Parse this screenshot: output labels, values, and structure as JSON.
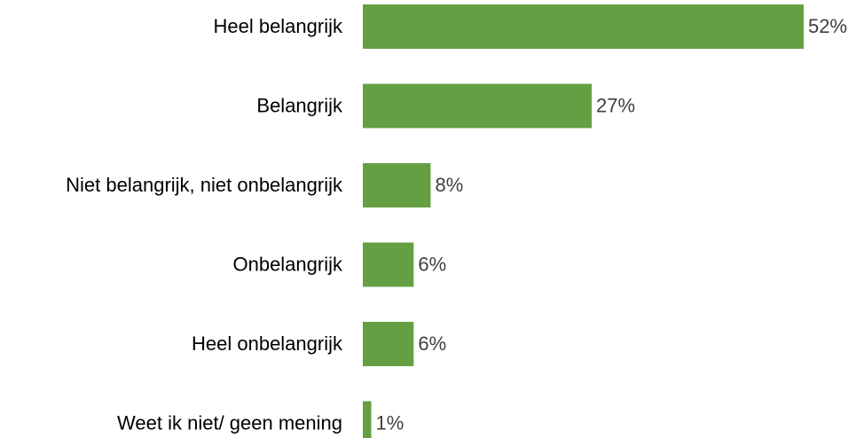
{
  "chart_data": {
    "type": "bar",
    "orientation": "horizontal",
    "categories": [
      "Heel belangrijk",
      "Belangrijk",
      "Niet belangrijk, niet onbelangrijk",
      "Onbelangrijk",
      "Heel onbelangrijk",
      "Weet ik niet/ geen mening"
    ],
    "values": [
      52,
      27,
      8,
      6,
      6,
      1
    ],
    "value_labels": [
      "52%",
      "27%",
      "8%",
      "6%",
      "6%",
      "1%"
    ],
    "color": "#64a043"
  }
}
